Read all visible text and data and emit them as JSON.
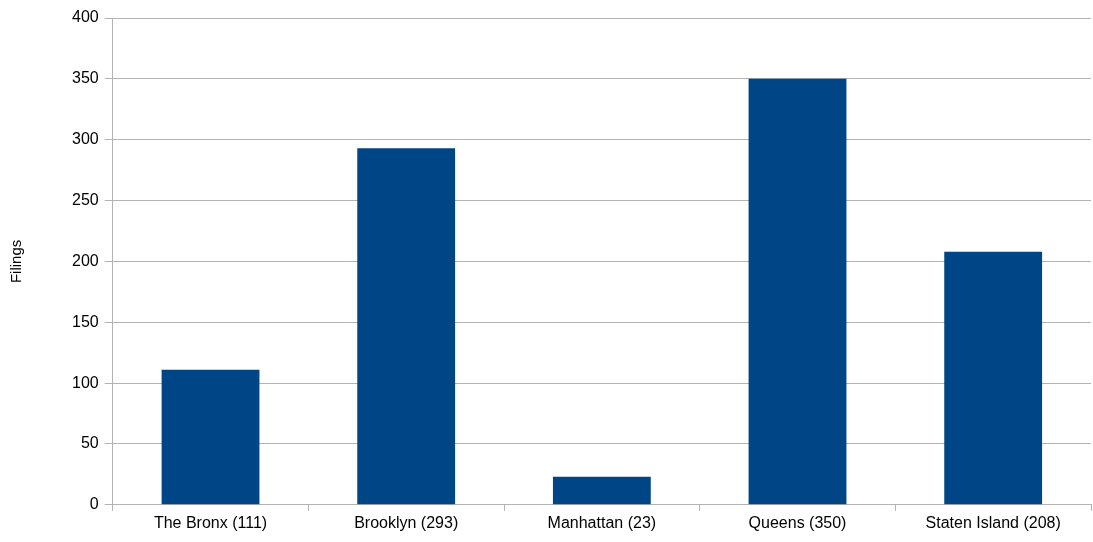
{
  "chart_data": {
    "type": "bar",
    "ylabel": "Filings",
    "categories": [
      "The Bronx (111)",
      "Brooklyn (293)",
      "Manhattan (23)",
      "Queens (350)",
      "Staten Island (208)"
    ],
    "values": [
      111,
      293,
      23,
      350,
      208
    ],
    "color": "#004586",
    "ylim": [
      0,
      400
    ],
    "yticks": [
      0,
      50,
      100,
      150,
      200,
      250,
      300,
      350,
      400
    ],
    "grid": "y",
    "legend": false
  }
}
